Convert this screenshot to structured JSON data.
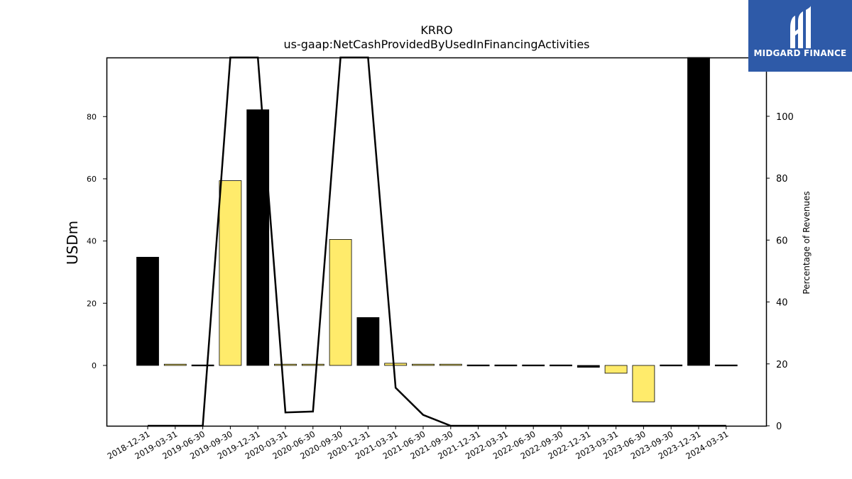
{
  "chart_data": {
    "type": "bar",
    "title": "KRRO",
    "subtitle": "us-gaap:NetCashProvidedByUsedInFinancingActivities",
    "ylabel": "USDm",
    "y2label": "Percentage of Revenues",
    "ylim": [
      -19.4,
      99
    ],
    "y2lim": [
      0,
      119
    ],
    "yticks": [
      0,
      20,
      40,
      60,
      80
    ],
    "y2ticks": [
      0,
      20,
      40,
      60,
      80,
      100
    ],
    "categories": [
      "2018-12-31",
      "2019-03-31",
      "2019-06-30",
      "2019-09-30",
      "2019-12-31",
      "2020-03-31",
      "2020-06-30",
      "2020-09-30",
      "2020-12-31",
      "2021-03-31",
      "2021-06-30",
      "2021-09-30",
      "2021-12-31",
      "2022-03-31",
      "2022-06-30",
      "2022-09-30",
      "2022-12-31",
      "2023-03-31",
      "2023-06-30",
      "2023-09-30",
      "2023-12-31",
      "2024-03-31"
    ],
    "series": [
      {
        "type": "bar",
        "values": [
          34.8,
          0.4,
          0.2,
          59.4,
          82.2,
          0.4,
          0.4,
          40.5,
          15.4,
          0.7,
          0.4,
          0.4,
          0.1,
          0.1,
          -0.1,
          0.1,
          -0.6,
          -2.5,
          -11.7,
          -0.1,
          99,
          0.1
        ],
        "colors": [
          "#000000",
          "#ffeb6b",
          "#000000",
          "#ffeb6b",
          "#000000",
          "#ffeb6b",
          "#ffeb6b",
          "#ffeb6b",
          "#000000",
          "#ffeb6b",
          "#ffeb6b",
          "#ffeb6b",
          "#000000",
          "#000000",
          "#000000",
          "#000000",
          "#000000",
          "#ffeb6b",
          "#ffeb6b",
          "#000000",
          "#000000",
          "#000000"
        ]
      },
      {
        "type": "line",
        "axis": "right",
        "values": [
          0,
          0,
          0,
          119,
          119,
          4.3,
          4.6,
          119,
          119,
          12.3,
          3.5,
          0,
          0,
          0,
          0,
          0,
          0,
          0,
          0,
          0,
          0,
          0
        ]
      }
    ],
    "grid": false
  },
  "logo": {
    "name": "MIDGARD FINANCE",
    "bg_color": "#2e5aa8"
  }
}
